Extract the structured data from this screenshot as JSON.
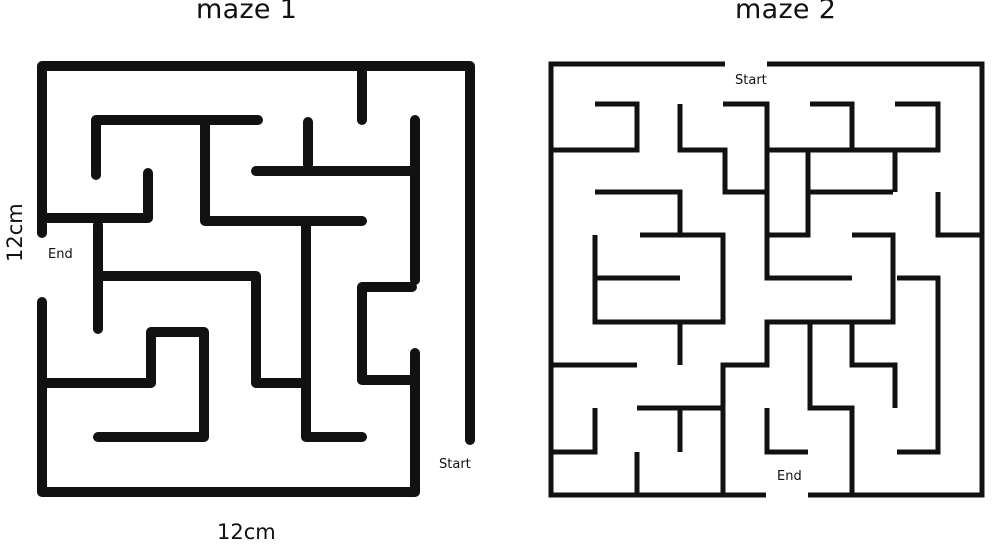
{
  "maze1": {
    "title": "maze 1",
    "start_label": "Start",
    "end_label": "End",
    "width_label": "12cm",
    "height_label": "12cm"
  },
  "maze2": {
    "title": "maze 2",
    "start_label": "Start",
    "end_label": "End"
  },
  "colors": {
    "wall": "#111111",
    "background": "#ffffff"
  }
}
